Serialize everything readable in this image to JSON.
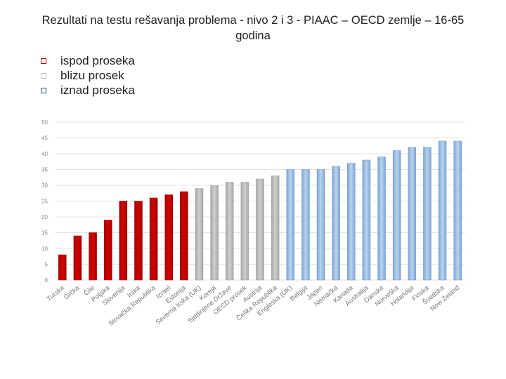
{
  "title_line1": "Rezultati na testu rešavanja problema - nivo 2 i 3 - PIAAC – OECD zemlje – 16-65",
  "title_line2": "godina",
  "legend": [
    {
      "label": "ispod proseka",
      "color": "#c00000"
    },
    {
      "label": "blizu prosek",
      "color": "#bfbfbf"
    },
    {
      "label": "iznad proseka",
      "color": "#8db4e2"
    }
  ],
  "chart_data": {
    "type": "bar",
    "title": "Rezultati na testu rešavanja problema - nivo 2 i 3 - PIAAC – OECD zemlje – 16-65 godina",
    "ylim": [
      0,
      50
    ],
    "yticks": [
      0,
      5,
      10,
      15,
      20,
      25,
      30,
      35,
      40,
      45,
      50
    ],
    "categories": [
      "Turska",
      "Grčka",
      "Čile",
      "Poljska",
      "Slovenija",
      "Irska",
      "Slovačka Republika",
      "Izrael",
      "Estonija",
      "Severna Irska (UK)",
      "Koreja",
      "Sjedinjene Države",
      "OECD prosek",
      "Austrija",
      "Češka Republika",
      "Engleska (UK)",
      "Belgija",
      "Japan",
      "Nemačka",
      "Kanada",
      "Australija",
      "Danska",
      "Norveška",
      "Holandija",
      "Finska",
      "Švedska",
      "Novi Zeland"
    ],
    "values": [
      8,
      14,
      15,
      19,
      25,
      25,
      26,
      27,
      28,
      29,
      30,
      31,
      31,
      32,
      33,
      35,
      35,
      35,
      36,
      37,
      38,
      39,
      41,
      42,
      42,
      44,
      44
    ],
    "groups": [
      "below",
      "below",
      "below",
      "below",
      "below",
      "below",
      "below",
      "below",
      "below",
      "near",
      "near",
      "near",
      "near",
      "near",
      "near",
      "above",
      "above",
      "above",
      "above",
      "above",
      "above",
      "above",
      "above",
      "above",
      "above",
      "above",
      "above"
    ]
  }
}
